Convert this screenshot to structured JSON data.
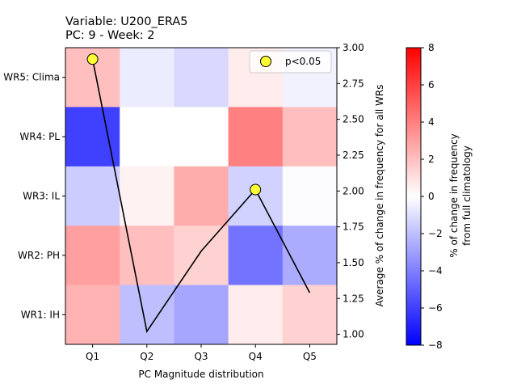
{
  "chart_data": {
    "type": "heatmap",
    "title_line1": "Variable: U200_ERA5",
    "title_line2": "PC: 9 - Week: 2",
    "xlabel": "PC Magnitude distribution",
    "ylabel_right": "Average % of change in frequency for all WRs",
    "colorbar_label_line1": "% of change in frequency",
    "colorbar_label_line2": "from full climatology",
    "x_categories": [
      "Q1",
      "Q2",
      "Q3",
      "Q4",
      "Q5"
    ],
    "y_categories_top_to_bottom": [
      "WR5: Clima",
      "WR4: PL",
      "WR3: IL",
      "WR2: PH",
      "WR1: IH"
    ],
    "heatmap_values_top_to_bottom": [
      [
        2.0,
        -0.6,
        -1.2,
        0.6,
        -0.4
      ],
      [
        -6.0,
        0.0,
        0.0,
        4.0,
        2.0
      ],
      [
        -1.6,
        0.4,
        2.6,
        -1.4,
        -0.1
      ],
      [
        3.0,
        2.0,
        1.4,
        -4.4,
        -2.6
      ],
      [
        2.4,
        -2.0,
        -2.8,
        0.6,
        1.4
      ]
    ],
    "colorbar_range": [
      -8,
      8
    ],
    "colorbar_ticks": [
      -8,
      -6,
      -4,
      -2,
      0,
      2,
      4,
      6,
      8
    ],
    "line_series": {
      "x": [
        "Q1",
        "Q2",
        "Q3",
        "Q4",
        "Q5"
      ],
      "y": [
        2.92,
        1.02,
        1.58,
        2.01,
        1.29
      ]
    },
    "right_axis_range": [
      0.93,
      3.0
    ],
    "right_axis_ticks": [
      1.0,
      1.25,
      1.5,
      1.75,
      2.0,
      2.25,
      2.5,
      2.75,
      3.0
    ],
    "significant_markers": [
      {
        "x": "Q1",
        "y": 2.92
      },
      {
        "x": "Q4",
        "y": 2.01
      }
    ],
    "legend": {
      "label": "p<0.05",
      "position": "top-right"
    },
    "colors": {
      "marker_fill": "#ffff33",
      "line": "#000000",
      "colormap": "bwr"
    }
  }
}
